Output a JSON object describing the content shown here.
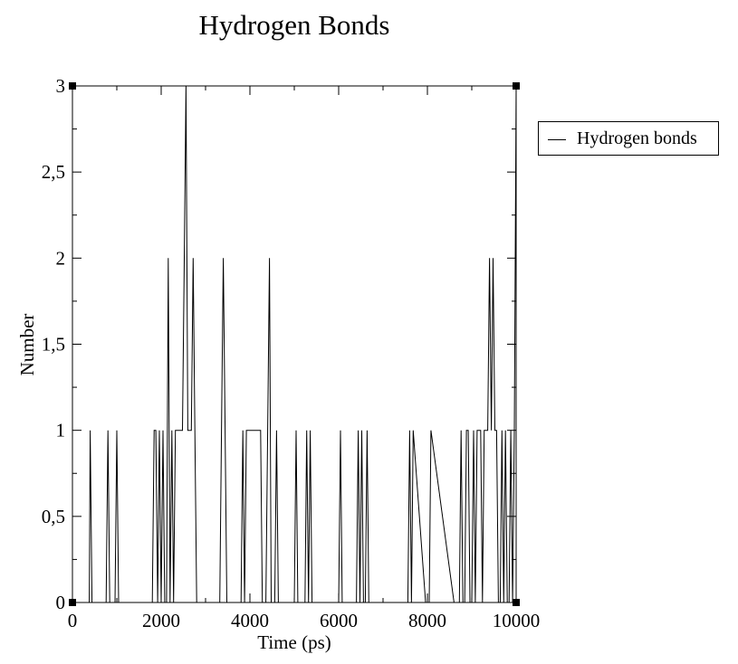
{
  "chart_data": {
    "type": "line",
    "title": "Hydrogen Bonds",
    "xlabel": "Time (ps)",
    "ylabel": "Number",
    "xlim": [
      0,
      10000
    ],
    "ylim": [
      0,
      3
    ],
    "xticks": [
      0,
      2000,
      4000,
      6000,
      8000,
      10000
    ],
    "xtick_labels": [
      "0",
      "2000",
      "4000",
      "6000",
      "8000",
      "10000"
    ],
    "yticks": [
      0,
      0.5,
      1,
      1.5,
      2,
      2.5,
      3
    ],
    "ytick_labels": [
      "0",
      "0,5",
      "1",
      "1,5",
      "2",
      "2,5",
      "3"
    ],
    "grid": false,
    "legend_position": "top-right (outside plot)",
    "series": [
      {
        "name": "Hydrogen bonds",
        "color": "#000000",
        "x": [
          0,
          380,
          400,
          440,
          760,
          800,
          840,
          960,
          1000,
          1040,
          1800,
          1840,
          1880,
          1920,
          1960,
          2000,
          2040,
          2080,
          2120,
          2160,
          2200,
          2240,
          2280,
          2320,
          2360,
          2400,
          2440,
          2480,
          2520,
          2560,
          2600,
          2640,
          2680,
          2720,
          2760,
          2800,
          2840,
          2880,
          2920,
          2960,
          3000,
          3320,
          3360,
          3400,
          3440,
          3480,
          3520,
          3560,
          3800,
          3840,
          3880,
          3920,
          4000,
          4200,
          4240,
          4280,
          4320,
          4360,
          4400,
          4440,
          4480,
          4520,
          4560,
          4600,
          4640,
          4680,
          4720,
          4760,
          5000,
          5040,
          5080,
          5120,
          5160,
          5240,
          5280,
          5320,
          5360,
          5400,
          5440,
          5960,
          6000,
          6040,
          6080,
          6120,
          6360,
          6400,
          6440,
          6480,
          6520,
          6560,
          6600,
          6640,
          6680,
          6720,
          7480,
          7520,
          7560,
          7600,
          7640,
          7680,
          7960,
          8000,
          8040,
          8080,
          8600,
          8640,
          8680,
          8720,
          8760,
          8800,
          8840,
          8880,
          8920,
          8960,
          9000,
          9040,
          9080,
          9120,
          9160,
          9200,
          9240,
          9280,
          9320,
          9360,
          9400,
          9440,
          9480,
          9520,
          9560,
          9600,
          9640,
          9680,
          9720,
          9760,
          9800,
          9840,
          9880,
          9920,
          9960,
          10000
        ],
        "y": [
          0,
          0,
          1,
          0,
          0,
          1,
          0,
          0,
          1,
          0,
          0,
          1,
          1,
          0,
          1,
          0,
          1,
          0,
          0,
          2,
          0,
          1,
          0,
          1,
          1,
          1,
          1,
          1,
          2,
          3,
          1,
          1,
          1,
          2,
          1,
          0,
          0,
          0,
          0,
          0,
          0,
          0,
          1,
          2,
          1,
          0,
          0,
          0,
          0,
          1,
          0,
          1,
          1,
          1,
          1,
          0,
          0,
          0,
          1,
          2,
          0,
          0,
          0,
          1,
          0,
          0,
          0,
          0,
          0,
          1,
          0,
          0,
          0,
          0,
          1,
          0,
          1,
          0,
          0,
          0,
          0,
          1,
          0,
          0,
          0,
          0,
          1,
          0,
          1,
          0,
          0,
          1,
          0,
          0,
          0,
          0,
          0,
          1,
          0,
          1,
          0,
          0,
          0,
          1,
          0,
          0,
          0,
          0,
          1,
          0,
          0,
          1,
          1,
          0,
          0,
          1,
          0,
          1,
          1,
          1,
          0,
          1,
          1,
          1,
          2,
          1,
          2,
          1,
          1,
          0,
          0,
          1,
          0,
          1,
          0,
          0,
          1,
          0,
          1,
          3
        ]
      }
    ]
  }
}
